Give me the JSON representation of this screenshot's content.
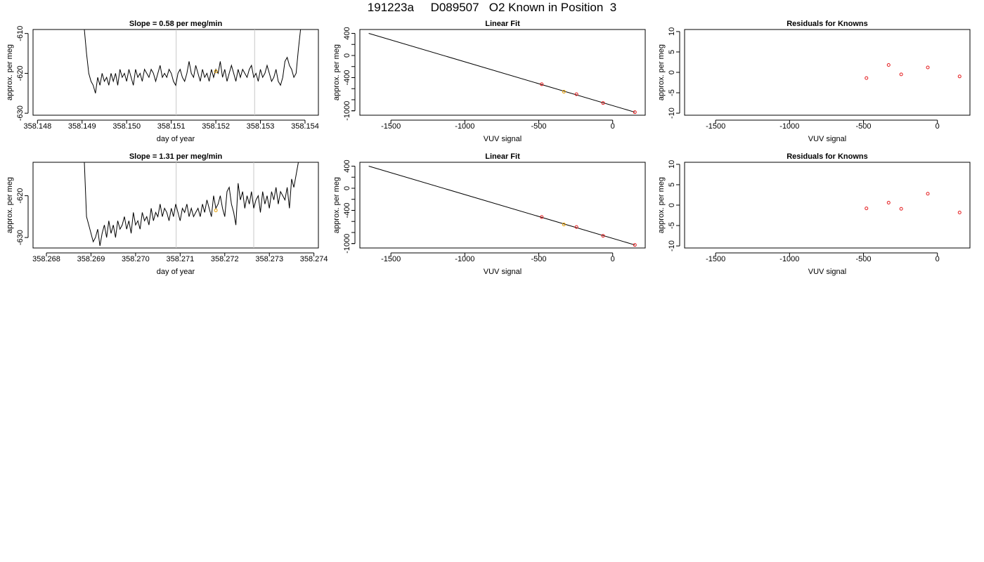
{
  "page_title": "191223a     D089507   O2 Known in Position  3",
  "chart_data": [
    {
      "type": "line",
      "title": "Slope =  0.58  per meg/min",
      "xlabel": "day of year",
      "ylabel": "approx. per meg",
      "xlim": [
        358.1479,
        358.1543
      ],
      "ylim": [
        -630.5,
        -609
      ],
      "x_ticks": [
        "358.148",
        "358.149",
        "358.150",
        "358.151",
        "358.152",
        "358.153",
        "358.154"
      ],
      "y_ticks": [
        "-610",
        "-620",
        "-630"
      ],
      "vertical_lines": [
        358.15111,
        358.15287
      ],
      "highlight_point": {
        "x": 358.152,
        "y": -619.5,
        "color": "#e69f00"
      },
      "series": [
        {
          "x": [
            358.14905,
            358.1491,
            358.14915,
            358.1492,
            358.14925,
            358.1493,
            358.14935,
            358.1494,
            358.14945,
            358.1495,
            358.14955,
            358.1496,
            358.14965,
            358.1497,
            358.14975,
            358.1498,
            358.14985,
            358.1499,
            358.14995,
            358.15,
            358.15005,
            358.1501,
            358.15015,
            358.1502,
            358.15025,
            358.1503,
            358.15035,
            358.1504,
            358.15045,
            358.1505,
            358.15055,
            358.1506,
            358.15065,
            358.1507,
            358.15075,
            358.1508,
            358.15085,
            358.1509,
            358.15095,
            358.151,
            358.15105,
            358.1511,
            358.15115,
            358.1512,
            358.15125,
            358.1513,
            358.15135,
            358.1514,
            358.15145,
            358.1515,
            358.15155,
            358.1516,
            358.15165,
            358.1517,
            358.15175,
            358.1518,
            358.15185,
            358.1519,
            358.15195,
            358.152,
            358.15205,
            358.1521,
            358.15215,
            358.1522,
            358.15225,
            358.1523,
            358.15235,
            358.1524,
            358.15245,
            358.1525,
            358.15255,
            358.1526,
            358.15265,
            358.1527,
            358.15275,
            358.1528,
            358.15285,
            358.1529,
            358.15295,
            358.153,
            358.15305,
            358.1531,
            358.15315,
            358.1532,
            358.15325,
            358.1533,
            358.15335,
            358.1534,
            358.15345,
            358.1535,
            358.15355,
            358.1536,
            358.15365,
            358.1537,
            358.15375,
            358.1538,
            358.15385,
            358.1539
          ],
          "y": [
            -609,
            -615,
            -620,
            -622,
            -623,
            -625,
            -621,
            -623,
            -620,
            -622,
            -621,
            -623,
            -620,
            -622,
            -620,
            -623,
            -619,
            -621,
            -620,
            -622,
            -619,
            -621,
            -623,
            -619,
            -621,
            -620,
            -622,
            -619,
            -620,
            -621,
            -619,
            -620,
            -622,
            -620,
            -618,
            -621,
            -620,
            -621,
            -619,
            -620,
            -622,
            -623,
            -620,
            -619,
            -621,
            -622,
            -620,
            -617,
            -620,
            -621,
            -618,
            -620,
            -622,
            -619,
            -621,
            -620,
            -622,
            -619,
            -621,
            -619,
            -620,
            -617,
            -621,
            -619,
            -622,
            -620,
            -618,
            -620,
            -622,
            -619,
            -621,
            -619,
            -620,
            -621,
            -619,
            -618,
            -621,
            -620,
            -622,
            -619,
            -621,
            -620,
            -618,
            -620,
            -622,
            -621,
            -619,
            -622,
            -623,
            -621,
            -617,
            -616,
            -618,
            -619,
            -621,
            -620,
            -614,
            -609
          ]
        }
      ]
    },
    {
      "type": "scatter",
      "title": "Linear Fit",
      "xlabel": "VUV signal",
      "ylabel": "approx. per meg",
      "xlim": [
        -1710,
        220
      ],
      "ylim": [
        -1080,
        470
      ],
      "x_ticks": [
        "-1500",
        "-1000",
        "-500",
        "0"
      ],
      "y_ticks": [
        "-1000",
        "-400",
        "0",
        "400"
      ],
      "fit_line": {
        "x": [
          -1650,
          150
        ],
        "y": [
          400,
          -1025
        ]
      },
      "points": {
        "x": [
          150,
          -65,
          -245,
          -480,
          -330
        ],
        "y": [
          -1025,
          -860,
          -700,
          -520,
          -655
        ],
        "colors": [
          "#e41a1c",
          "#e41a1c",
          "#e41a1c",
          "#e41a1c",
          "#e69f00"
        ]
      }
    },
    {
      "type": "scatter",
      "title": "Residuals for Knowns",
      "xlabel": "VUV signal",
      "ylabel": "approx. per meg",
      "xlim": [
        -1710,
        220
      ],
      "ylim": [
        -10.5,
        10.5
      ],
      "x_ticks": [
        "-1500",
        "-1000",
        "-500",
        "0"
      ],
      "y_ticks": [
        "-10",
        "-5",
        "0",
        "5",
        "10"
      ],
      "points": {
        "x": [
          150,
          -65,
          -245,
          -330,
          -480
        ],
        "y": [
          -1,
          1.2,
          -0.5,
          1.8,
          -1.4
        ],
        "colors": [
          "#e41a1c",
          "#e41a1c",
          "#e41a1c",
          "#e41a1c",
          "#e41a1c"
        ]
      }
    },
    {
      "type": "line",
      "title": "Slope =  1.31  per meg/min",
      "xlabel": "day of year",
      "ylabel": "approx. per meg",
      "xlim": [
        358.2677,
        358.2741
      ],
      "ylim": [
        -632.5,
        -612
      ],
      "x_ticks": [
        "358.268",
        "358.269",
        "358.270",
        "358.271",
        "358.272",
        "358.273",
        "358.274"
      ],
      "y_ticks": [
        "-620",
        "-630"
      ],
      "vertical_lines": [
        358.27091,
        358.27265
      ],
      "highlight_point": {
        "x": 358.2718,
        "y": -623.5,
        "color": "#e69f00"
      },
      "series": [
        {
          "x": [
            358.26885,
            358.2689,
            358.26895,
            358.269,
            358.26905,
            358.2691,
            358.26915,
            358.2692,
            358.26925,
            358.2693,
            358.26935,
            358.2694,
            358.26945,
            358.2695,
            358.26955,
            358.2696,
            358.26965,
            358.2697,
            358.26975,
            358.2698,
            358.26985,
            358.2699,
            358.26995,
            358.27,
            358.27005,
            358.2701,
            358.27015,
            358.2702,
            358.27025,
            358.2703,
            358.27035,
            358.2704,
            358.27045,
            358.2705,
            358.27055,
            358.2706,
            358.27065,
            358.2707,
            358.27075,
            358.2708,
            358.27085,
            358.2709,
            358.27095,
            358.271,
            358.27105,
            358.2711,
            358.27115,
            358.2712,
            358.27125,
            358.2713,
            358.27135,
            358.2714,
            358.27145,
            358.2715,
            358.27155,
            358.2716,
            358.27165,
            358.2717,
            358.27175,
            358.2718,
            358.27185,
            358.2719,
            358.27195,
            358.272,
            358.27205,
            358.2721,
            358.27215,
            358.2722,
            358.27225,
            358.2723,
            358.27235,
            358.2724,
            358.27245,
            358.2725,
            358.27255,
            358.2726,
            358.27265,
            358.2727,
            358.27275,
            358.2728,
            358.27285,
            358.2729,
            358.27295,
            358.273,
            358.27305,
            358.2731,
            358.27315,
            358.2732,
            358.27325,
            358.2733,
            358.27335,
            358.2734,
            358.27345,
            358.2735,
            358.27355,
            358.2736,
            358.27365
          ],
          "y": [
            -612,
            -625,
            -627,
            -629,
            -631,
            -630,
            -628,
            -632,
            -629,
            -627,
            -630,
            -626,
            -629,
            -627,
            -630,
            -626,
            -628,
            -627,
            -625,
            -628,
            -626,
            -629,
            -624,
            -627,
            -626,
            -628,
            -624,
            -626,
            -625,
            -627,
            -623,
            -626,
            -624,
            -625,
            -622,
            -625,
            -623,
            -624,
            -626,
            -623,
            -625,
            -622,
            -624,
            -626,
            -623,
            -624,
            -622,
            -625,
            -623,
            -625,
            -624,
            -623,
            -625,
            -622,
            -624,
            -621,
            -623,
            -625,
            -620,
            -623,
            -622,
            -620,
            -623,
            -625,
            -619,
            -618,
            -622,
            -624,
            -627,
            -617,
            -621,
            -619,
            -623,
            -620,
            -622,
            -619,
            -623,
            -621,
            -620,
            -624,
            -619,
            -622,
            -620,
            -623,
            -619,
            -621,
            -618,
            -622,
            -619,
            -620,
            -621,
            -618,
            -623,
            -616,
            -618,
            -615,
            -612
          ]
        }
      ]
    },
    {
      "type": "scatter",
      "title": "Linear Fit",
      "xlabel": "VUV signal",
      "ylabel": "approx. per meg",
      "xlim": [
        -1710,
        220
      ],
      "ylim": [
        -1080,
        470
      ],
      "x_ticks": [
        "-1500",
        "-1000",
        "-500",
        "0"
      ],
      "y_ticks": [
        "-1000",
        "-400",
        "0",
        "400"
      ],
      "fit_line": {
        "x": [
          -1650,
          150
        ],
        "y": [
          400,
          -1025
        ]
      },
      "points": {
        "x": [
          150,
          -65,
          -245,
          -480,
          -330
        ],
        "y": [
          -1025,
          -860,
          -700,
          -520,
          -655
        ],
        "colors": [
          "#e41a1c",
          "#e41a1c",
          "#e41a1c",
          "#e41a1c",
          "#e69f00"
        ]
      }
    },
    {
      "type": "scatter",
      "title": "Residuals for Knowns",
      "xlabel": "VUV signal",
      "ylabel": "approx. per meg",
      "xlim": [
        -1710,
        220
      ],
      "ylim": [
        -10.5,
        10.5
      ],
      "x_ticks": [
        "-1500",
        "-1000",
        "-500",
        "0"
      ],
      "y_ticks": [
        "-10",
        "-5",
        "0",
        "5",
        "10"
      ],
      "points": {
        "x": [
          150,
          -65,
          -245,
          -330,
          -480
        ],
        "y": [
          -1.8,
          2.8,
          -0.9,
          0.6,
          -0.8
        ],
        "colors": [
          "#e41a1c",
          "#e41a1c",
          "#e41a1c",
          "#e41a1c",
          "#e41a1c"
        ]
      }
    }
  ]
}
